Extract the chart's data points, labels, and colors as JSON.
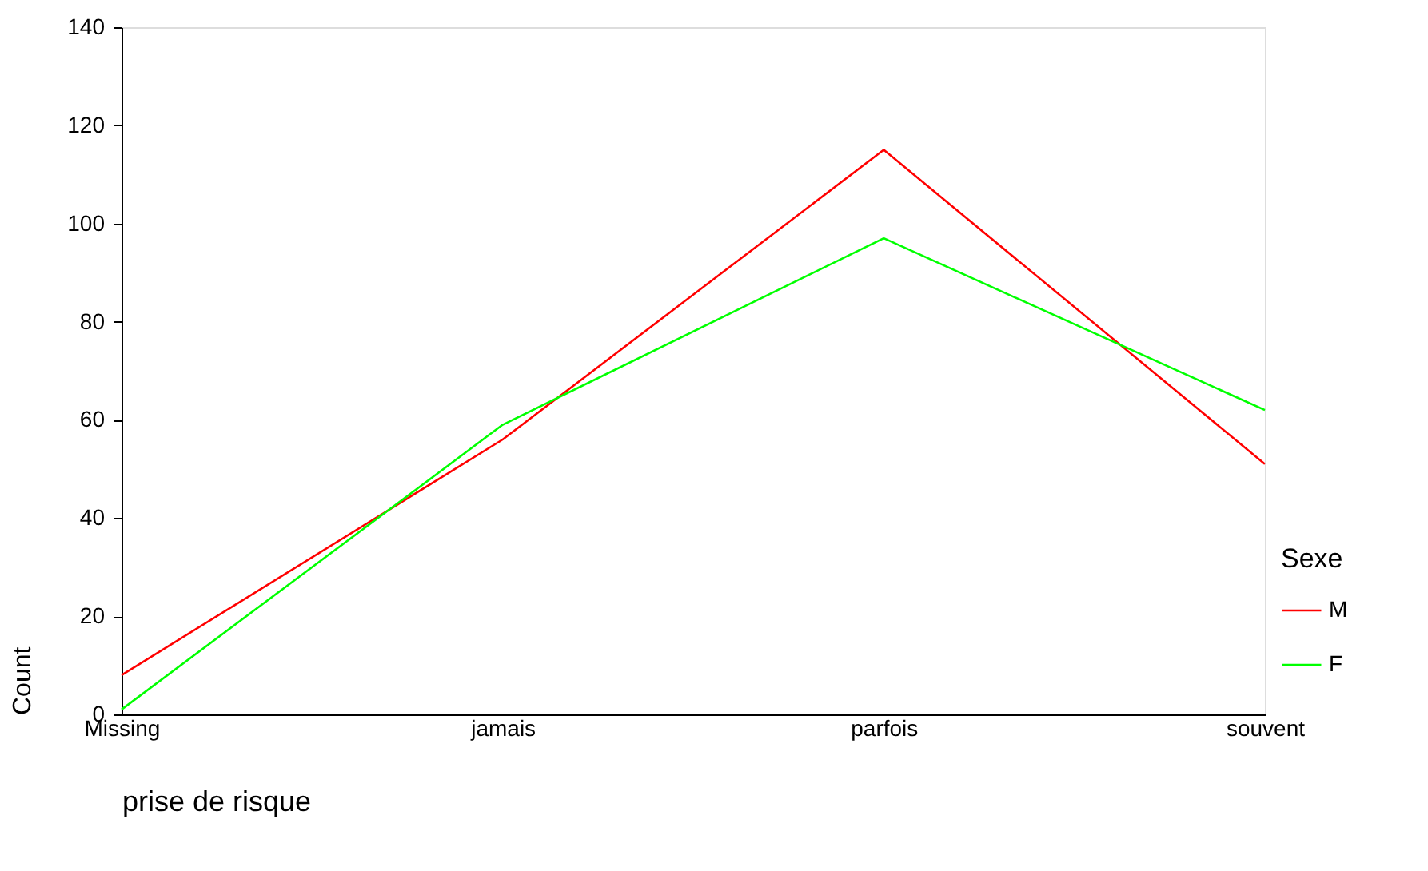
{
  "chart_data": {
    "type": "line",
    "xlabel": "prise de risque",
    "ylabel": "Count",
    "legend_title": "Sexe",
    "categories": [
      "Missing",
      "jamais",
      "parfois",
      "souvent"
    ],
    "series": [
      {
        "name": "M",
        "color": "#ff0000",
        "values": [
          8,
          56,
          115,
          51
        ]
      },
      {
        "name": "F",
        "color": "#00ff00",
        "values": [
          1,
          59,
          97,
          62
        ]
      }
    ],
    "ylim": [
      0,
      140
    ],
    "yticks": [
      0,
      20,
      40,
      60,
      80,
      100,
      120,
      140
    ],
    "grid": false,
    "legend": "right",
    "marker": "none",
    "line_style": "solid"
  }
}
